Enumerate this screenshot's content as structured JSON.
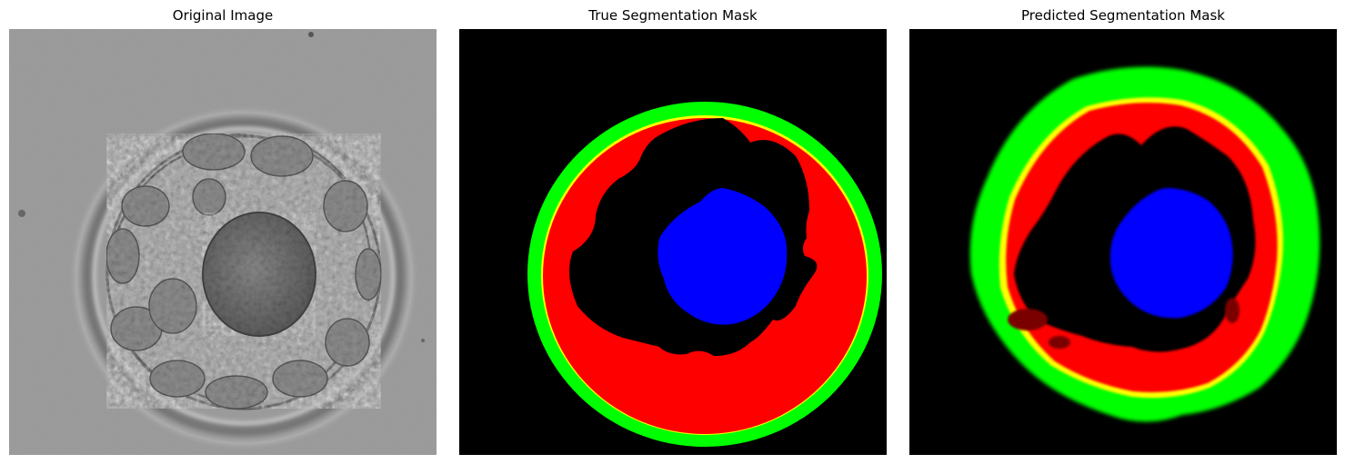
{
  "figure": {
    "panels": [
      {
        "title": "Original Image"
      },
      {
        "title": "True Segmentation Mask"
      },
      {
        "title": "Predicted Segmentation Mask"
      }
    ]
  },
  "colors": {
    "background_mask": "#000000",
    "class_zona": "#00ff00",
    "class_trophectoderm": "#ff0000",
    "class_icm": "#0000ff",
    "boundary": "#ffff00",
    "microscopy_gray": "#9e9e9e"
  }
}
